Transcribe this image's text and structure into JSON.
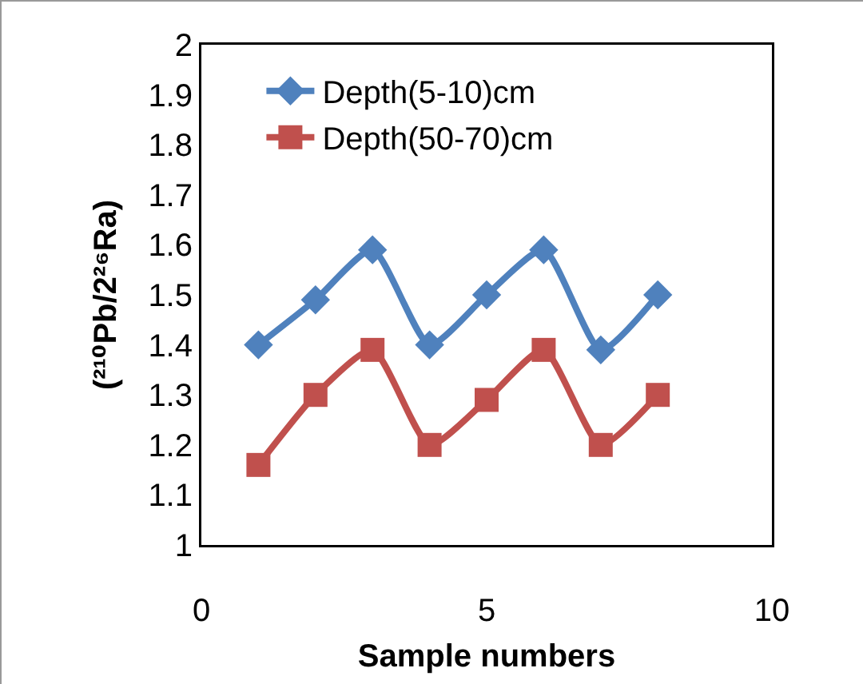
{
  "chart_data": {
    "type": "line",
    "xlabel": "Sample numbers",
    "ylabel": "(²¹⁰Pb/2²⁶Ra)",
    "x": [
      1,
      2,
      3,
      4,
      5,
      6,
      7,
      8
    ],
    "series": [
      {
        "name": "Depth(5-10)cm",
        "color": "#4f81bd",
        "marker": "diamond",
        "values": [
          1.4,
          1.49,
          1.59,
          1.4,
          1.5,
          1.59,
          1.39,
          1.5
        ]
      },
      {
        "name": "Depth(50-70)cm",
        "color": "#c0504d",
        "marker": "square",
        "values": [
          1.16,
          1.3,
          1.39,
          1.2,
          1.29,
          1.39,
          1.2,
          1.3
        ]
      }
    ],
    "xlim": [
      0,
      10
    ],
    "xticks": [
      0,
      5,
      10
    ],
    "ylim": [
      1,
      2
    ],
    "yticks": [
      1,
      1.1,
      1.2,
      1.3,
      1.4,
      1.5,
      1.6,
      1.7,
      1.8,
      1.9,
      2
    ],
    "grid": false,
    "legend": "top left",
    "line_style": "solid"
  }
}
